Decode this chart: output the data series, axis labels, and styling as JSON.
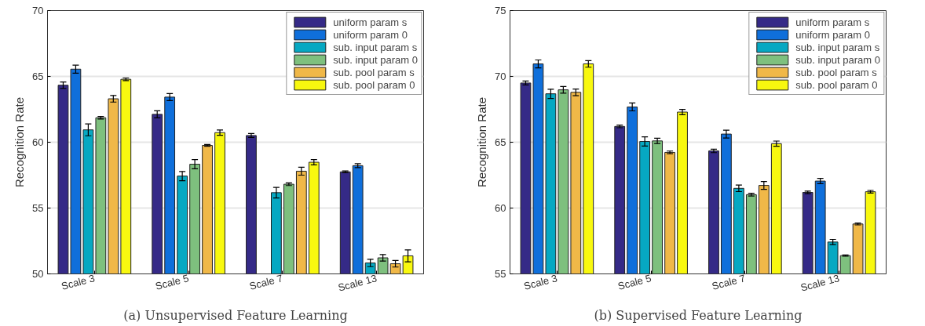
{
  "chart_data": [
    {
      "type": "bar",
      "title": "(a) Unsupervised Feature Learning",
      "ylabel": "Recognition Rate",
      "categories": [
        "Scale 3",
        "Scale 5",
        "Scale 7",
        "Scale 13"
      ],
      "ylim": [
        50,
        70
      ],
      "yticks": [
        50,
        55,
        60,
        65,
        70
      ],
      "grid": "y",
      "legend": "top right",
      "series": [
        {
          "name": "uniform param s",
          "color": "#352a87",
          "values": [
            64.33,
            62.12,
            60.51,
            57.75
          ],
          "errors": [
            0.25,
            0.27,
            0.15,
            0.07
          ]
        },
        {
          "name": "uniform param 0",
          "color": "#0f6fdb",
          "values": [
            65.55,
            63.43,
            null,
            58.22
          ],
          "errors": [
            0.3,
            0.27,
            null,
            0.15
          ]
        },
        {
          "name": "sub. input param s",
          "color": "#06a8c2",
          "values": [
            60.94,
            57.43,
            56.17,
            50.83
          ],
          "errors": [
            0.45,
            0.35,
            0.4,
            0.28
          ]
        },
        {
          "name": "sub. input param 0",
          "color": "#7ec07e",
          "values": [
            61.86,
            58.33,
            56.81,
            51.22
          ],
          "errors": [
            0.1,
            0.35,
            0.1,
            0.25
          ]
        },
        {
          "name": "sub. pool param s",
          "color": "#f0b848",
          "values": [
            63.3,
            59.76,
            57.8,
            50.77
          ],
          "errors": [
            0.25,
            0.07,
            0.3,
            0.25
          ]
        },
        {
          "name": "sub. pool param 0",
          "color": "#f8f80f",
          "values": [
            64.78,
            60.73,
            58.48,
            51.37
          ],
          "errors": [
            0.1,
            0.2,
            0.2,
            0.45
          ]
        }
      ]
    },
    {
      "type": "bar",
      "title": "(b) Supervised Feature Learning",
      "ylabel": "Recognition Rate",
      "categories": [
        "Scale 3",
        "Scale 5",
        "Scale 7",
        "Scale 13"
      ],
      "ylim": [
        55,
        75
      ],
      "yticks": [
        55,
        60,
        65,
        70,
        75
      ],
      "grid": "y",
      "legend": "top right",
      "series": [
        {
          "name": "uniform param s",
          "color": "#352a87",
          "values": [
            69.5,
            66.2,
            64.34,
            61.19
          ],
          "errors": [
            0.15,
            0.1,
            0.13,
            0.1
          ]
        },
        {
          "name": "uniform param 0",
          "color": "#0f6fdb",
          "values": [
            70.95,
            67.68,
            65.62,
            62.05
          ],
          "errors": [
            0.3,
            0.3,
            0.3,
            0.2
          ]
        },
        {
          "name": "sub. input param s",
          "color": "#06a8c2",
          "values": [
            68.68,
            65.06,
            61.5,
            57.42
          ],
          "errors": [
            0.35,
            0.35,
            0.25,
            0.2
          ]
        },
        {
          "name": "sub. input param 0",
          "color": "#7ec07e",
          "values": [
            68.98,
            65.1,
            61.02,
            56.39
          ],
          "errors": [
            0.25,
            0.2,
            0.1,
            0.05
          ]
        },
        {
          "name": "sub. pool param s",
          "color": "#f0b848",
          "values": [
            68.79,
            64.23,
            61.72,
            58.79
          ],
          "errors": [
            0.25,
            0.1,
            0.3,
            0.07
          ]
        },
        {
          "name": "sub. pool param 0",
          "color": "#f8f80f",
          "values": [
            70.95,
            67.29,
            64.89,
            61.24
          ],
          "errors": [
            0.25,
            0.2,
            0.2,
            0.1
          ]
        }
      ]
    }
  ]
}
